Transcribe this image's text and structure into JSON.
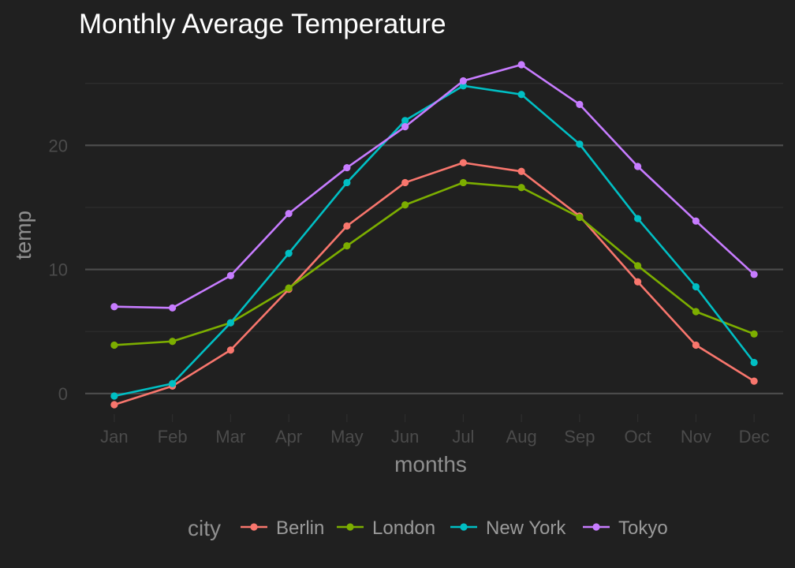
{
  "chart_data": {
    "type": "line",
    "title": "Monthly Average Temperature",
    "xlabel": "months",
    "ylabel": "temp",
    "categories": [
      "Jan",
      "Feb",
      "Mar",
      "Apr",
      "May",
      "Jun",
      "Jul",
      "Aug",
      "Sep",
      "Oct",
      "Nov",
      "Dec"
    ],
    "ylim": [
      -2.3,
      27.9
    ],
    "yticks": [
      0,
      10,
      20
    ],
    "ytick_labels": [
      "0",
      "10",
      "20"
    ],
    "legend_title": "city",
    "legend_position": "bottom",
    "grid": true,
    "series": [
      {
        "name": "Berlin",
        "color": "#F8766D",
        "values": [
          -0.9,
          0.6,
          3.5,
          8.4,
          13.5,
          17.0,
          18.6,
          17.9,
          14.3,
          9.0,
          3.9,
          1.0
        ]
      },
      {
        "name": "London",
        "color": "#7CAE00",
        "values": [
          3.9,
          4.2,
          5.7,
          8.5,
          11.9,
          15.2,
          17.0,
          16.6,
          14.2,
          10.3,
          6.6,
          4.8
        ]
      },
      {
        "name": "New York",
        "color": "#00BFC4",
        "values": [
          -0.2,
          0.8,
          5.7,
          11.3,
          17.0,
          22.0,
          24.8,
          24.1,
          20.1,
          14.1,
          8.6,
          2.5
        ]
      },
      {
        "name": "Tokyo",
        "color": "#C77CFF",
        "values": [
          7.0,
          6.9,
          9.5,
          14.5,
          18.2,
          21.5,
          25.2,
          26.5,
          23.3,
          18.3,
          13.9,
          9.6
        ]
      }
    ]
  }
}
